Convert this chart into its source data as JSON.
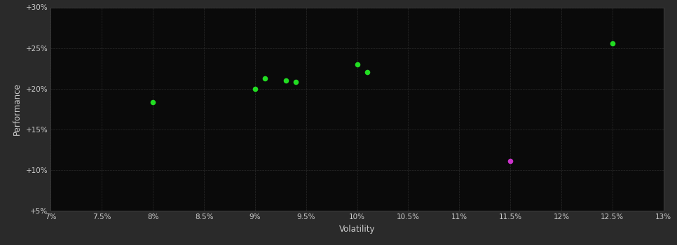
{
  "background_color": "#2a2a2a",
  "plot_bg_color": "#0a0a0a",
  "grid_color": "#333333",
  "text_color": "#cccccc",
  "green_points": [
    [
      0.08,
      0.183
    ],
    [
      0.09,
      0.2
    ],
    [
      0.091,
      0.213
    ],
    [
      0.093,
      0.21
    ],
    [
      0.094,
      0.208
    ],
    [
      0.1,
      0.23
    ],
    [
      0.101,
      0.22
    ],
    [
      0.125,
      0.256
    ]
  ],
  "magenta_points": [
    [
      0.115,
      0.111
    ]
  ],
  "green_color": "#22dd22",
  "magenta_color": "#cc33cc",
  "xlabel": "Volatility",
  "ylabel": "Performance",
  "xlim": [
    0.07,
    0.13
  ],
  "ylim": [
    0.05,
    0.3
  ],
  "xticks": [
    0.07,
    0.075,
    0.08,
    0.085,
    0.09,
    0.095,
    0.1,
    0.105,
    0.11,
    0.115,
    0.12,
    0.125,
    0.13
  ],
  "yticks": [
    0.05,
    0.1,
    0.15,
    0.2,
    0.25,
    0.3
  ],
  "ytick_labels": [
    "+5%",
    "+10%",
    "+15%",
    "+20%",
    "+25%",
    "+30%"
  ],
  "xtick_labels": [
    "7%",
    "7.5%",
    "8%",
    "8.5%",
    "9%",
    "9.5%",
    "10%",
    "10.5%",
    "11%",
    "11.5%",
    "12%",
    "12.5%",
    "13%"
  ]
}
